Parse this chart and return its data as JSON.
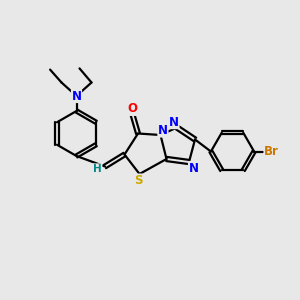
{
  "background_color": "#e8e8e8",
  "bond_color": "#000000",
  "N_color": "#0000ff",
  "O_color": "#ff0000",
  "S_color": "#ccaa00",
  "Br_color": "#cc7700",
  "H_color": "#008888",
  "figsize": [
    3.0,
    3.0
  ],
  "dpi": 100,
  "xlim": [
    0,
    10
  ],
  "ylim": [
    0,
    10
  ]
}
